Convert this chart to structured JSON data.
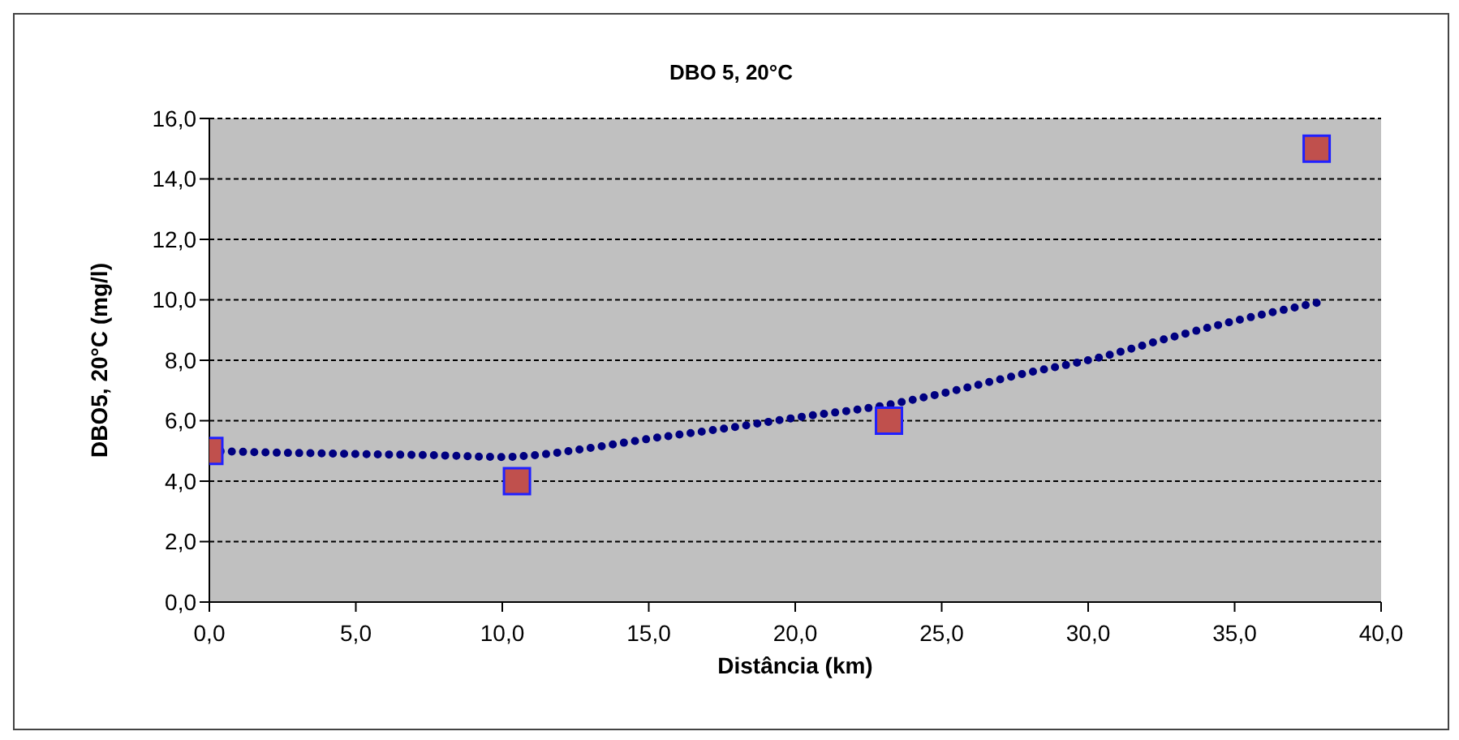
{
  "chart_data": {
    "type": "scatter",
    "title": "DBO 5, 20°C",
    "xlabel": "Distância (km)",
    "ylabel": "DBO5, 20°C (mg/l)",
    "xlim": [
      0,
      40
    ],
    "xticks": [
      {
        "value": 0,
        "label": "0,0"
      },
      {
        "value": 5,
        "label": "5,0"
      },
      {
        "value": 10,
        "label": "10,0"
      },
      {
        "value": 15,
        "label": "15,0"
      },
      {
        "value": 20,
        "label": "20,0"
      },
      {
        "value": 25,
        "label": "25,0"
      },
      {
        "value": 30,
        "label": "30,0"
      },
      {
        "value": 35,
        "label": "35,0"
      },
      {
        "value": 40,
        "label": "40,0"
      }
    ],
    "ylim": [
      0,
      16
    ],
    "yticks": [
      {
        "value": 0,
        "label": "0,0"
      },
      {
        "value": 2,
        "label": "2,0"
      },
      {
        "value": 4,
        "label": "4,0"
      },
      {
        "value": 6,
        "label": "6,0"
      },
      {
        "value": 8,
        "label": "8,0"
      },
      {
        "value": 10,
        "label": "10,0"
      },
      {
        "value": 12,
        "label": "12,0"
      },
      {
        "value": 14,
        "label": "14,0"
      },
      {
        "value": 16,
        "label": "16,0"
      }
    ],
    "grid": "y",
    "series": [
      {
        "type": "line",
        "color": "#000080",
        "line_style": "dotted",
        "marker": "none",
        "x": [
          0,
          2,
          5,
          8,
          10,
          11,
          13,
          15,
          18,
          20,
          23,
          25,
          28,
          30,
          33,
          35,
          37.8
        ],
        "values": [
          5.0,
          4.95,
          4.9,
          4.85,
          4.8,
          4.85,
          5.1,
          5.4,
          5.8,
          6.1,
          6.5,
          6.9,
          7.6,
          8.0,
          8.8,
          9.3,
          9.9
        ]
      },
      {
        "color": "#c0504d",
        "marker": "square",
        "x": [
          0,
          10.5,
          23.2,
          37.8
        ],
        "values": [
          5,
          4,
          6,
          15
        ]
      }
    ]
  }
}
